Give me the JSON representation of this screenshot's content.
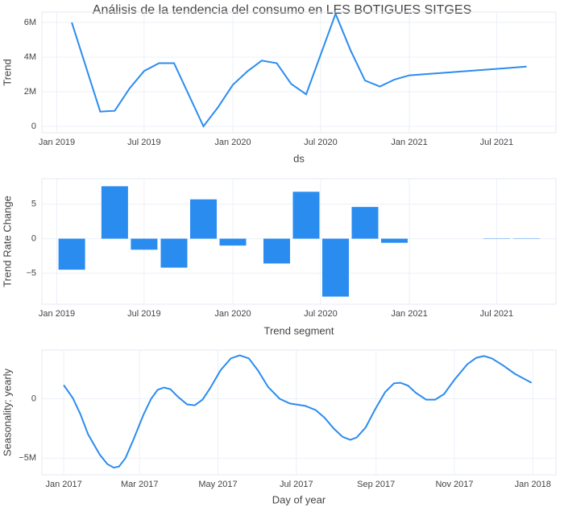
{
  "title": "Análisis de la tendencia del consumo en LES BOTIGUES SITGES",
  "chart_data": [
    {
      "type": "line",
      "xlabel": "ds",
      "ylabel": "Trend",
      "color": "#2b8cf0",
      "grid": true,
      "x": [
        "2019-02",
        "2019-04",
        "2019-05",
        "2019-06",
        "2019-07",
        "2019-08",
        "2019-09",
        "2019-11",
        "2019-12",
        "2020-01",
        "2020-02",
        "2020-03",
        "2020-04",
        "2020-05",
        "2020-06",
        "2020-08",
        "2020-09",
        "2020-10",
        "2020-11",
        "2020-12",
        "2021-01",
        "2021-09"
      ],
      "values": [
        6000000,
        850000,
        900000,
        2200000,
        3200000,
        3650000,
        3650000,
        0,
        1100000,
        2400000,
        3200000,
        3800000,
        3650000,
        2450000,
        1850000,
        6500000,
        4400000,
        2650000,
        2300000,
        2700000,
        2950000,
        3450000
      ],
      "xlim": [
        "2018-12",
        "2021-11"
      ],
      "ylim": [
        -370000,
        6600000
      ],
      "xticks": [
        {
          "value": "2019-01",
          "label": "Jan 2019"
        },
        {
          "value": "2019-07",
          "label": "Jul 2019"
        },
        {
          "value": "2020-01",
          "label": "Jan 2020"
        },
        {
          "value": "2020-07",
          "label": "Jul 2020"
        },
        {
          "value": "2021-01",
          "label": "Jan 2021"
        },
        {
          "value": "2021-07",
          "label": "Jul 2021"
        }
      ],
      "yticks": [
        0,
        {
          "value": 2000000,
          "label": "2M"
        },
        {
          "value": 4000000,
          "label": "4M"
        },
        {
          "value": 6000000,
          "label": "6M"
        }
      ]
    },
    {
      "type": "bar",
      "xlabel": "Trend segment",
      "ylabel": "Trend Rate Change",
      "color": "#2b8cf0",
      "grid": true,
      "x": [
        "2019-02",
        "2019-05",
        "2019-07",
        "2019-09",
        "2019-11",
        "2020-01",
        "2020-04",
        "2020-06",
        "2020-08",
        "2020-10",
        "2020-12",
        "2021-03",
        "2021-05",
        "2021-07",
        "2021-09"
      ],
      "values": [
        -4.5,
        7.6,
        -1.6,
        -4.2,
        5.7,
        -1.0,
        -3.6,
        6.8,
        -8.4,
        4.6,
        -0.6,
        0,
        0,
        -0.05,
        0.05
      ],
      "xlim": [
        "2018-12",
        "2021-11"
      ],
      "ylim": [
        -9.5,
        8.7
      ],
      "xticks": [
        {
          "value": "2019-01",
          "label": "Jan 2019"
        },
        {
          "value": "2019-07",
          "label": "Jul 2019"
        },
        {
          "value": "2020-01",
          "label": "Jan 2020"
        },
        {
          "value": "2020-07",
          "label": "Jul 2020"
        },
        {
          "value": "2021-01",
          "label": "Jan 2021"
        },
        {
          "value": "2021-07",
          "label": "Jul 2021"
        }
      ],
      "yticks": [
        {
          "value": -5,
          "label": "−5"
        },
        0,
        5
      ]
    },
    {
      "type": "line",
      "xlabel": "Day of year",
      "ylabel": "Seasonality: yearly",
      "color": "#2b8cf0",
      "grid": true,
      "x": [
        "2017-01-01",
        "2017-01-08",
        "2017-01-14",
        "2017-01-20",
        "2017-01-29",
        "2017-02-04",
        "2017-02-09",
        "2017-02-13",
        "2017-02-18",
        "2017-02-24",
        "2017-03-04",
        "2017-03-10",
        "2017-03-15",
        "2017-03-20",
        "2017-03-25",
        "2017-03-31",
        "2017-04-07",
        "2017-04-13",
        "2017-04-19",
        "2017-04-25",
        "2017-05-03",
        "2017-05-11",
        "2017-05-18",
        "2017-05-25",
        "2017-06-01",
        "2017-06-09",
        "2017-06-18",
        "2017-06-26",
        "2017-07-08",
        "2017-07-16",
        "2017-07-23",
        "2017-07-30",
        "2017-08-06",
        "2017-08-12",
        "2017-08-17",
        "2017-08-24",
        "2017-08-31",
        "2017-09-08",
        "2017-09-15",
        "2017-09-20",
        "2017-09-26",
        "2017-10-02",
        "2017-10-10",
        "2017-10-17",
        "2017-10-24",
        "2017-11-01",
        "2017-11-11",
        "2017-11-18",
        "2017-11-24",
        "2017-11-30",
        "2017-12-09",
        "2017-12-18",
        "2017-12-31"
      ],
      "values": [
        1150000,
        70000,
        -1300000,
        -3000000,
        -4700000,
        -5500000,
        -5800000,
        -5700000,
        -5000000,
        -3500000,
        -1350000,
        0,
        750000,
        950000,
        800000,
        150000,
        -470000,
        -550000,
        -70000,
        900000,
        2400000,
        3400000,
        3650000,
        3400000,
        2400000,
        1000000,
        0,
        -400000,
        -600000,
        -950000,
        -1600000,
        -2500000,
        -3200000,
        -3450000,
        -3250000,
        -2400000,
        -950000,
        550000,
        1300000,
        1350000,
        1100000,
        500000,
        -70000,
        -70000,
        400000,
        1600000,
        2900000,
        3450000,
        3600000,
        3400000,
        2800000,
        2100000,
        1350000
      ],
      "xlim": [
        "2016-12-15",
        "2018-01-19"
      ],
      "ylim": [
        -6400000,
        4100000
      ],
      "xticks": [
        {
          "value": "2017-01",
          "label": "Jan 2017"
        },
        {
          "value": "2017-03",
          "label": "Mar 2017"
        },
        {
          "value": "2017-05",
          "label": "May 2017"
        },
        {
          "value": "2017-07",
          "label": "Jul 2017"
        },
        {
          "value": "2017-09",
          "label": "Sep 2017"
        },
        {
          "value": "2017-11",
          "label": "Nov 2017"
        },
        {
          "value": "2018-01",
          "label": "Jan 2018"
        }
      ],
      "yticks": [
        {
          "value": -5000000,
          "label": "−5M"
        },
        0
      ]
    }
  ]
}
